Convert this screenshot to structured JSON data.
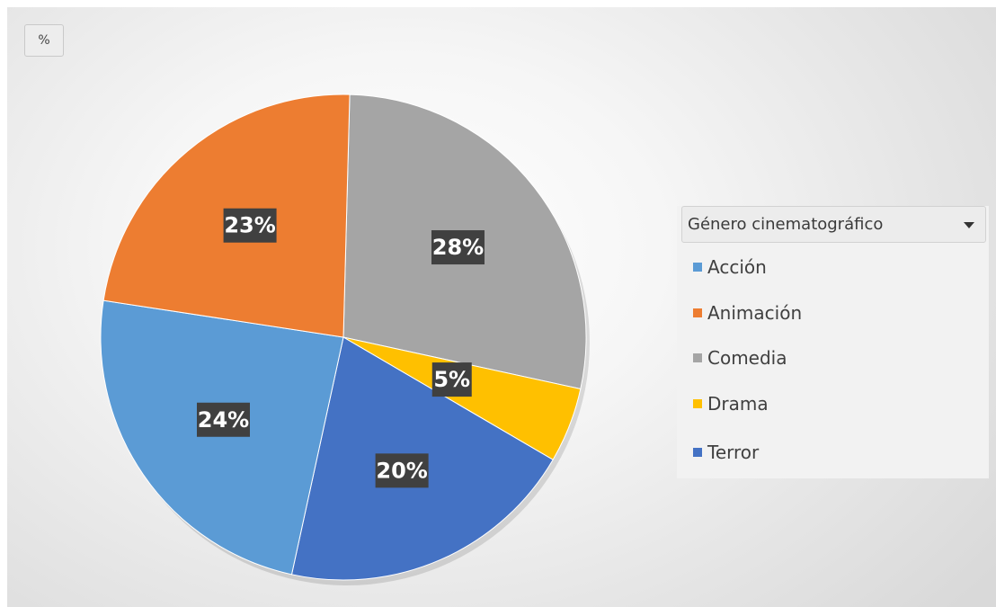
{
  "value_field_button": "%",
  "legend_field_button": "Género cinematográfico",
  "chart_data": {
    "type": "pie",
    "title": "",
    "categories": [
      "Acción",
      "Animación",
      "Comedia",
      "Drama",
      "Terror"
    ],
    "values": [
      24,
      23,
      28,
      5,
      20
    ],
    "labels": [
      "24%",
      "23%",
      "28%",
      "5%",
      "20%"
    ],
    "colors": [
      "#5b9bd5",
      "#ed7d31",
      "#a5a5a5",
      "#ffc000",
      "#4472c4"
    ],
    "label_background": "#404040",
    "legend_position": "right"
  }
}
